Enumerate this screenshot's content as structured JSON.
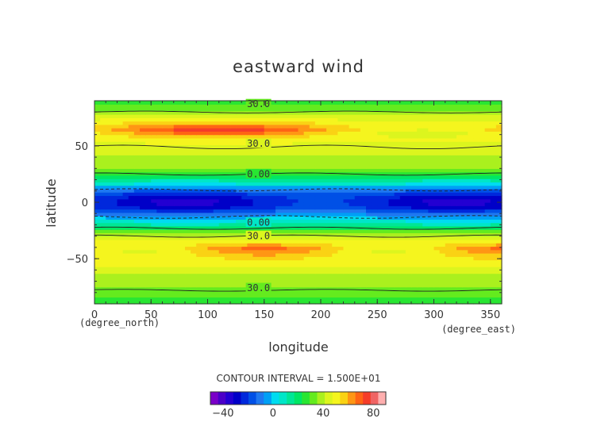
{
  "chart_data": {
    "type": "heatmap",
    "title": "eastward wind",
    "xlabel": "longitude",
    "ylabel": "latitude",
    "x_units": "(degree_east)",
    "y_units": "(degree_north)",
    "xlim": [
      0,
      360
    ],
    "ylim": [
      -90,
      90
    ],
    "x_ticks": [
      "0",
      "50",
      "100",
      "150",
      "200",
      "250",
      "300",
      "350"
    ],
    "y_ticks": [
      "-50",
      "0",
      "50"
    ],
    "contour_interval_text": "CONTOUR INTERVAL = 1.500E+01",
    "contour_labels": [
      "30.0",
      "30.0",
      "0.00",
      "0.00",
      "30.0",
      "30.0"
    ],
    "colorbar": {
      "ticks": [
        "-40",
        "0",
        "40",
        "80"
      ],
      "range": [
        -50,
        90
      ],
      "colors": [
        "#7a00c8",
        "#4b00c8",
        "#2300d2",
        "#0000c8",
        "#0028dc",
        "#0050e6",
        "#1e78f0",
        "#00a0f5",
        "#00dcf0",
        "#00e6c8",
        "#00e696",
        "#00e664",
        "#28e632",
        "#64eb1e",
        "#aaf01e",
        "#dcf51e",
        "#f5f51e",
        "#fad214",
        "#ff9614",
        "#ff6414",
        "#f53c28",
        "#f06464",
        "#ffafaf"
      ]
    },
    "zonal_profile": {
      "latitude": [
        -90,
        -80,
        -70,
        -60,
        -50,
        -40,
        -30,
        -25,
        -20,
        -15,
        -10,
        -5,
        0,
        5,
        10,
        15,
        20,
        25,
        30,
        40,
        50,
        60,
        65,
        70,
        80,
        90
      ],
      "wind": [
        26,
        32,
        38,
        44,
        52,
        58,
        44,
        28,
        12,
        2,
        -10,
        -22,
        -27,
        -24,
        -14,
        2,
        12,
        26,
        36,
        40,
        45,
        54,
        62,
        54,
        36,
        26
      ]
    }
  }
}
